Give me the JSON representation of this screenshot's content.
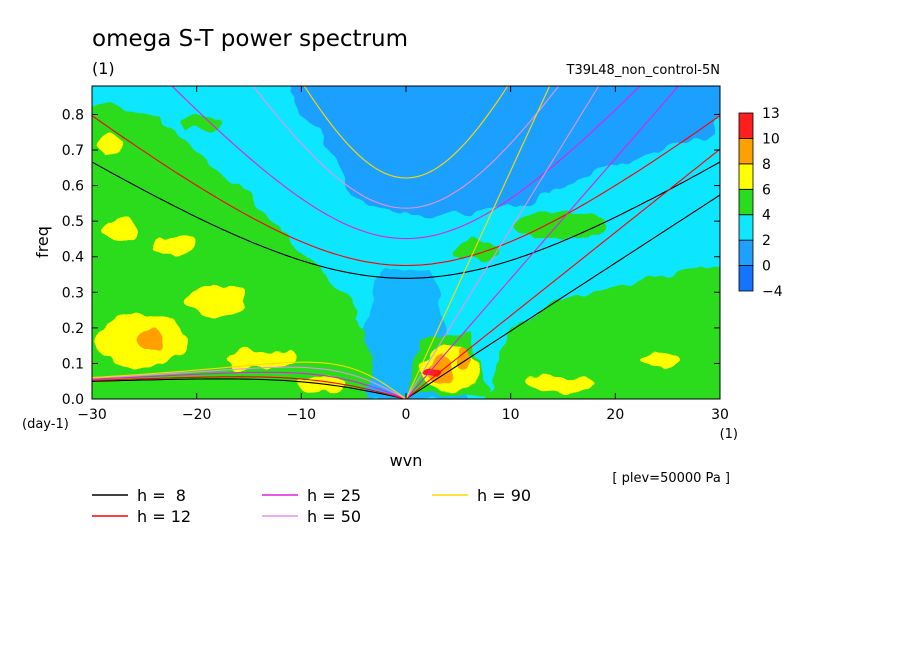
{
  "chart_data": {
    "type": "heatmap",
    "title": "omega S-T power spectrum",
    "title_units": "(1)",
    "run_label": "T39L48_non_control-5N",
    "xlabel": "wvn",
    "x_units": "(1)",
    "ylabel": "freq",
    "y_units": "(day-1)",
    "xlim": [
      -30,
      30
    ],
    "ylim": [
      0,
      0.88
    ],
    "xticks": [
      -30,
      -20,
      -10,
      0,
      10,
      20,
      30
    ],
    "yticks": [
      0.0,
      0.1,
      0.2,
      0.3,
      0.4,
      0.5,
      0.6,
      0.7,
      0.8
    ],
    "colorbar": {
      "levels": [
        -4,
        0,
        2,
        4,
        6,
        8,
        10,
        13
      ],
      "labels": [
        "13",
        "10",
        "8",
        "6",
        "4",
        "2",
        "0",
        "-4"
      ],
      "colors": [
        "#1473ff",
        "#1ea0ff",
        "#10e6ff",
        "#2adc1e",
        "#ffff00",
        "#ffa000",
        "#ff1e1e"
      ]
    },
    "field_regions": [
      {
        "level": "0-2",
        "description": "dominant upper/central region, lower middle wedge"
      },
      {
        "level": "-4-0",
        "description": "high frequency near wvn -10..+10"
      },
      {
        "level": "2-4",
        "description": "patches on right side above 0.3"
      },
      {
        "level": "4-6",
        "description": "broad band left side below 0.75, right side below 0.35"
      },
      {
        "level": "6-8",
        "description": "scattered patches low frequency, both sides"
      },
      {
        "level": "8-10",
        "description": "small patches near wvn 2..6 freq 0.05-0.15"
      },
      {
        "level": "10-13",
        "description": "peak near wvn 2..3 freq 0.08"
      }
    ],
    "curves_legend": [
      {
        "label": "h =  8",
        "color": "#000000"
      },
      {
        "label": "h = 12",
        "color": "#ff0000"
      },
      {
        "label": "h = 25",
        "color": "#e020e0"
      },
      {
        "label": "h = 50",
        "color": "#e890e8"
      },
      {
        "label": "h = 90",
        "color": "#ffd800"
      }
    ],
    "annotation": "[ plev=50000 Pa ]"
  }
}
